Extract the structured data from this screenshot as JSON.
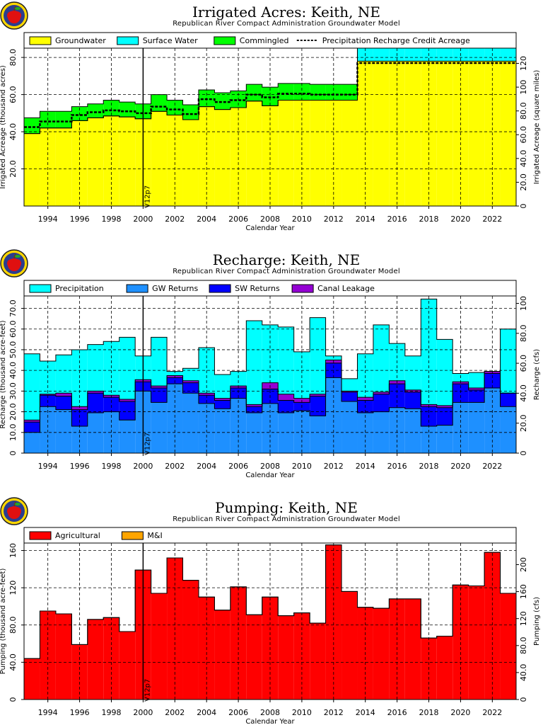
{
  "logo_icon": "apple-logo-icon",
  "chart_data": [
    {
      "type": "area",
      "title": "Irrigated Acres: Keith, NE",
      "subtitle": "Republican River Compact Administration Groundwater Model",
      "xlabel": "Calendar Year",
      "ylabel": "Irrigated Acreage (thousand acres)",
      "y2label": "Irrigated Acreage (square miles)",
      "marker_label": "V12p7",
      "marker_year": 2000.5,
      "xlim": [
        1993,
        2024
      ],
      "ylim": [
        0,
        85
      ],
      "yticks": [
        "20.0",
        "40.0",
        "60.0",
        "80.0"
      ],
      "ytick_values": [
        20,
        40,
        60,
        80
      ],
      "y2ticks": [
        "0",
        "20.0",
        "40.0",
        "60.0",
        "80.0",
        "100",
        "120"
      ],
      "y2tick_values": [
        0,
        20,
        40,
        60,
        80,
        100,
        120
      ],
      "y2_scale": 1.5625,
      "xticks": [
        "1994",
        "1996",
        "1998",
        "2000",
        "2002",
        "2004",
        "2006",
        "2008",
        "2010",
        "2012",
        "2014",
        "2016",
        "2018",
        "2020",
        "2022"
      ],
      "years": [
        1993,
        1994,
        1995,
        1996,
        1997,
        1998,
        1999,
        2000,
        2001,
        2002,
        2003,
        2004,
        2005,
        2006,
        2007,
        2008,
        2009,
        2010,
        2011,
        2012,
        2013,
        2014,
        2015,
        2016,
        2017,
        2018,
        2019,
        2020,
        2021,
        2022,
        2023
      ],
      "series": [
        {
          "name": "Groundwater",
          "color": "#ffff00",
          "values": [
            39,
            42,
            42,
            46,
            47.5,
            48.5,
            48,
            47,
            51,
            49,
            46.5,
            53.5,
            52,
            53,
            56.5,
            54,
            57,
            57,
            57,
            57,
            57,
            78,
            78,
            78,
            78,
            78,
            78,
            78,
            78,
            78,
            78
          ]
        },
        {
          "name": "Surface Water",
          "color": "#00ffff",
          "values": [
            0,
            0,
            0,
            0,
            0,
            0,
            0,
            0,
            0,
            0,
            0,
            0,
            0,
            0,
            0,
            0,
            0,
            0,
            0,
            0,
            0,
            7,
            7,
            7,
            7,
            7,
            7,
            7,
            7,
            7,
            7
          ]
        },
        {
          "name": "Commingled",
          "color": "#00ff00",
          "values": [
            8.5,
            9,
            9,
            7.5,
            7.5,
            8.5,
            8,
            8,
            9,
            8,
            8,
            9,
            9,
            9,
            9,
            10,
            9,
            9,
            8.5,
            8.5,
            8.5,
            0,
            0,
            0,
            0,
            0,
            0,
            0,
            0,
            0,
            0
          ]
        }
      ],
      "line_series": {
        "name": "Precipitation Recharge Credit Acreage",
        "values": [
          42.5,
          45.5,
          45.5,
          49,
          50.5,
          51.5,
          51,
          50,
          53.5,
          52,
          49.5,
          57.5,
          56,
          57,
          60,
          58.5,
          60.5,
          60.5,
          60,
          60,
          60,
          77,
          77,
          77,
          77,
          77,
          77,
          77,
          77,
          77,
          77
        ]
      },
      "grid": true,
      "legend_position": "top"
    },
    {
      "type": "area",
      "title": "Recharge: Keith, NE",
      "subtitle": "Republican River Compact Administration Groundwater Model",
      "xlabel": "Calendar Year",
      "ylabel": "Recharge (thousand acre-feet)",
      "y2label": "Recharge (cfs)",
      "marker_label": "V12p7",
      "marker_year": 2000.5,
      "xlim": [
        1993,
        2024
      ],
      "ylim": [
        0,
        76
      ],
      "yticks": [
        "0",
        "10.0",
        "20.0",
        "30.0",
        "40.0",
        "50.0",
        "60.0",
        "70.0"
      ],
      "ytick_values": [
        0,
        10,
        20,
        30,
        40,
        50,
        60,
        70
      ],
      "y2ticks": [
        "0",
        "20.0",
        "40.0",
        "60.0",
        "80.0",
        "100"
      ],
      "y2tick_values": [
        0,
        20,
        40,
        60,
        80,
        100
      ],
      "y2_scale": 1.381,
      "xticks": [
        "1994",
        "1996",
        "1998",
        "2000",
        "2002",
        "2004",
        "2006",
        "2008",
        "2010",
        "2012",
        "2014",
        "2016",
        "2018",
        "2020",
        "2022"
      ],
      "years": [
        1993,
        1994,
        1995,
        1996,
        1997,
        1998,
        1999,
        2000,
        2001,
        2002,
        2003,
        2004,
        2005,
        2006,
        2007,
        2008,
        2009,
        2010,
        2011,
        2012,
        2013,
        2014,
        2015,
        2016,
        2017,
        2018,
        2019,
        2020,
        2021,
        2022,
        2023
      ],
      "series": [
        {
          "name": "GW Returns",
          "color": "#1e90ff",
          "values": [
            10,
            22.5,
            21,
            13,
            19.5,
            20,
            16,
            30,
            24.5,
            33.5,
            29,
            24,
            21.5,
            26.5,
            19.5,
            24,
            19.5,
            20.5,
            18,
            36.5,
            25,
            19.5,
            20,
            22,
            21.5,
            13,
            13.5,
            24.5,
            24.5,
            31.5,
            22.5
          ]
        },
        {
          "name": "SW Returns",
          "color": "#0000ff",
          "values": [
            5,
            5.5,
            6.5,
            8,
            9.5,
            7,
            9,
            4.5,
            7,
            3,
            5,
            4,
            4,
            5,
            3,
            7,
            6,
            4,
            9.5,
            7,
            4.5,
            6,
            8.5,
            11.5,
            8,
            9.5,
            8.5,
            9,
            6,
            7,
            6.5
          ]
        },
        {
          "name": "Canal Leakage",
          "color": "#9400d3",
          "values": [
            1,
            0.5,
            1.5,
            1.5,
            1,
            1,
            1,
            1,
            1,
            1,
            1,
            1,
            1,
            1,
            1,
            3,
            3,
            2,
            1,
            1.5,
            0.5,
            1.5,
            1,
            1.5,
            1,
            1,
            1,
            1,
            1,
            1,
            0
          ]
        },
        {
          "name": "Precipitation",
          "color": "#00ffff",
          "values": [
            32,
            16,
            18.5,
            27.5,
            22.5,
            26,
            30,
            11.5,
            23.5,
            2,
            6,
            22,
            11.5,
            7,
            40.5,
            28,
            32.5,
            22.5,
            37,
            2,
            6,
            21,
            32.5,
            18,
            16.5,
            51,
            32,
            4,
            7.5,
            0,
            31
          ]
        }
      ],
      "grid": true,
      "legend_position": "top"
    },
    {
      "type": "area",
      "title": "Pumping: Keith, NE",
      "subtitle": "Republican River Compact Administration Groundwater Model",
      "xlabel": "Calendar Year",
      "ylabel": "Pumping (thousand acre-feet)",
      "y2label": "Pumping (cfs)",
      "marker_label": "V12p7",
      "marker_year": 2000.5,
      "xlim": [
        1993,
        2024
      ],
      "ylim": [
        0,
        168
      ],
      "yticks": [
        "0",
        "40.0",
        "80.0",
        "120",
        "160"
      ],
      "ytick_values": [
        0,
        40,
        80,
        120,
        160
      ],
      "y2ticks": [
        "0",
        "40.0",
        "80.0",
        "120",
        "160",
        "200"
      ],
      "y2tick_values": [
        0,
        40,
        80,
        120,
        160,
        200
      ],
      "y2_scale": 1.381,
      "xticks": [
        "1994",
        "1996",
        "1998",
        "2000",
        "2002",
        "2004",
        "2006",
        "2008",
        "2010",
        "2012",
        "2014",
        "2016",
        "2018",
        "2020",
        "2022"
      ],
      "years": [
        1993,
        1994,
        1995,
        1996,
        1997,
        1998,
        1999,
        2000,
        2001,
        2002,
        2003,
        2004,
        2005,
        2006,
        2007,
        2008,
        2009,
        2010,
        2011,
        2012,
        2013,
        2014,
        2015,
        2016,
        2017,
        2018,
        2019,
        2020,
        2021,
        2022,
        2023
      ],
      "series": [
        {
          "name": "Agricultural",
          "color": "#ff0000",
          "values": [
            44,
            95,
            92,
            59,
            86,
            88,
            73,
            139,
            114,
            152,
            128,
            110,
            96,
            121,
            91,
            110,
            90,
            93,
            82,
            166,
            116,
            99,
            98,
            108,
            108,
            66,
            68,
            123,
            122,
            158,
            114
          ]
        },
        {
          "name": "M&I",
          "color": "#ffa500",
          "values": [
            0,
            0,
            0,
            0,
            0,
            0,
            0,
            0,
            0,
            0,
            0,
            0,
            0,
            0,
            0,
            0,
            0,
            0,
            0,
            0,
            0,
            0,
            0,
            0,
            0,
            0,
            0,
            0,
            0,
            0,
            0
          ]
        }
      ],
      "grid": true,
      "legend_position": "top"
    }
  ]
}
